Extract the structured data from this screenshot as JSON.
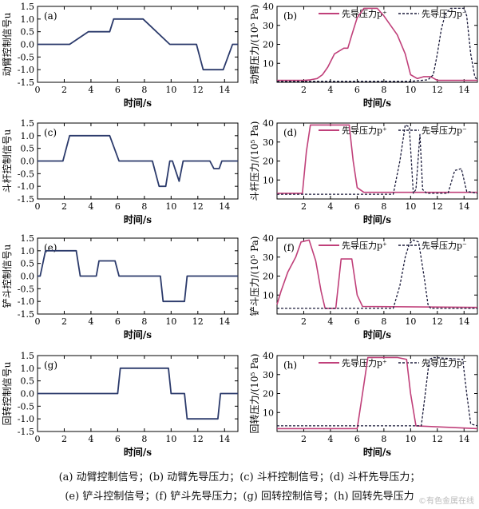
{
  "figure": {
    "caption_line1": "(a) 动臂控制信号；(b) 动臂先导压力；(c) 斗杆控制信号；(d) 斗杆先导压力；",
    "caption_line2": "(e) 铲斗控制信号；(f) 铲斗先导压力；(g) 回转控制信号；(h) 回转先导压力",
    "watermark": "©有色金属在线"
  },
  "colors": {
    "signal": "#2b3a6b",
    "p_plus": "#c0407a",
    "p_minus": "#1a1a3a",
    "axis": "#000000"
  },
  "chart_data": [
    {
      "id": "a",
      "type": "line",
      "panel_label": "(a)",
      "xlabel": "时间/s",
      "ylabel": "动臂控制信号u",
      "xlim": [
        0,
        15
      ],
      "ylim": [
        -1.5,
        1.5
      ],
      "xticks": [
        0,
        2,
        4,
        6,
        8,
        10,
        12,
        14
      ],
      "yticks": [
        -1.5,
        -1.0,
        -0.5,
        0,
        0.5,
        1.0,
        1.5
      ],
      "series": [
        {
          "style": "signal",
          "x": [
            0,
            2.4,
            3.8,
            5.4,
            5.7,
            7.9,
            9.9,
            11.9,
            12.4,
            13.9,
            14.6,
            15
          ],
          "y": [
            0,
            0,
            0.5,
            0.5,
            1.0,
            1.0,
            0,
            0,
            -1.0,
            -1.0,
            0,
            0
          ]
        }
      ]
    },
    {
      "id": "b",
      "type": "line",
      "panel_label": "(b)",
      "xlabel": "时间/s",
      "ylabel": "动臂压力/(10⁵ Pa)",
      "xlim": [
        0,
        15
      ],
      "ylim": [
        0,
        40
      ],
      "xticks": [
        2,
        4,
        6,
        8,
        10,
        12,
        14
      ],
      "yticks": [
        10,
        20,
        30,
        40
      ],
      "legend": [
        "先导压力p⁺",
        "先导压力p⁻"
      ],
      "series": [
        {
          "style": "p_plus",
          "x": [
            0,
            2,
            2.5,
            3,
            3.4,
            3.8,
            4.3,
            5.0,
            5.3,
            5.6,
            6.0,
            6.5,
            7.5,
            8.0,
            9.0,
            9.6,
            10.0,
            10.5,
            11.0,
            11.5,
            12.0,
            15
          ],
          "y": [
            1,
            1,
            1.3,
            2,
            4,
            8,
            15,
            18,
            18,
            25,
            34,
            39,
            39,
            35,
            25,
            15,
            4,
            2,
            3,
            3,
            1,
            1
          ]
        },
        {
          "style": "p_minus",
          "x": [
            0,
            10,
            11.3,
            11.7,
            12.0,
            12.3,
            12.6,
            13.0,
            14.0,
            14.2,
            14.5,
            14.8,
            15
          ],
          "y": [
            0.5,
            0.5,
            1.3,
            4,
            15,
            28,
            36,
            39,
            39,
            35,
            15,
            3,
            1
          ]
        }
      ]
    },
    {
      "id": "c",
      "type": "line",
      "panel_label": "(c)",
      "xlabel": "时间/s",
      "ylabel": "斗杆控制信号u",
      "xlim": [
        0,
        15
      ],
      "ylim": [
        -1.5,
        1.5
      ],
      "xticks": [
        0,
        2,
        4,
        6,
        8,
        10,
        12,
        14
      ],
      "yticks": [
        -1.5,
        -1.0,
        -0.5,
        0,
        0.5,
        1.0,
        1.5
      ],
      "series": [
        {
          "style": "signal",
          "x": [
            0,
            1.9,
            2.4,
            5.4,
            6.1,
            8.6,
            9.1,
            9.6,
            9.9,
            10.1,
            10.35,
            10.6,
            10.9,
            11.4,
            12.9,
            13.2,
            13.6,
            13.8,
            15
          ],
          "y": [
            0,
            0,
            1.0,
            1.0,
            0,
            0,
            -1.0,
            -1.0,
            0,
            0,
            -0.4,
            -0.8,
            0,
            0,
            0,
            -0.3,
            -0.3,
            0,
            0
          ]
        }
      ]
    },
    {
      "id": "d",
      "type": "line",
      "panel_label": "(d)",
      "xlabel": "时间/s",
      "ylabel": "斗杆压力/(10⁵ Pa)",
      "xlim": [
        0,
        15
      ],
      "ylim": [
        0,
        40
      ],
      "xticks": [
        2,
        4,
        6,
        8,
        10,
        12,
        14
      ],
      "yticks": [
        10,
        20,
        30,
        40
      ],
      "legend": [
        "先导压力p⁺",
        "先导压力p⁻"
      ],
      "series": [
        {
          "style": "p_plus",
          "x": [
            0,
            1.9,
            2.2,
            2.5,
            5.4,
            5.7,
            6.0,
            6.5,
            15
          ],
          "y": [
            3,
            3,
            25,
            39,
            39,
            20,
            6,
            3.5,
            3.5
          ]
        },
        {
          "style": "p_minus",
          "x": [
            0,
            8.7,
            9.2,
            9.6,
            9.9,
            10.2,
            10.4,
            10.7,
            10.9,
            11.2,
            12.8,
            13.3,
            13.8,
            14.2,
            15
          ],
          "y": [
            2.5,
            2.5,
            20,
            39,
            38,
            3,
            5,
            34,
            5,
            3,
            3,
            15,
            16,
            4,
            3
          ]
        }
      ]
    },
    {
      "id": "e",
      "type": "line",
      "panel_label": "(e)",
      "xlabel": "时间/s",
      "ylabel": "铲斗控制信号u",
      "xlim": [
        0,
        15
      ],
      "ylim": [
        -1.5,
        1.5
      ],
      "xticks": [
        0,
        2,
        4,
        6,
        8,
        10,
        12,
        14
      ],
      "yticks": [
        -1.5,
        -1.0,
        -0.5,
        0,
        0.5,
        1.0,
        1.5
      ],
      "series": [
        {
          "style": "signal",
          "x": [
            0,
            0.2,
            0.6,
            2.9,
            3.2,
            4.4,
            4.6,
            5.8,
            6.1,
            9.2,
            9.4,
            11.0,
            11.2,
            15
          ],
          "y": [
            0,
            0,
            1.0,
            1.0,
            0,
            0,
            0.6,
            0.6,
            0,
            0,
            -1.0,
            -1.0,
            0,
            0
          ]
        }
      ]
    },
    {
      "id": "f",
      "type": "line",
      "panel_label": "(f)",
      "xlabel": "时间/s",
      "ylabel": "铲斗压力/(10⁵ Pa)",
      "xlim": [
        0,
        15
      ],
      "ylim": [
        0,
        40
      ],
      "xticks": [
        2,
        4,
        6,
        8,
        10,
        12,
        14
      ],
      "yticks": [
        10,
        20,
        30,
        40
      ],
      "legend": [
        "先导压力p⁺",
        "先导压力p⁻"
      ],
      "series": [
        {
          "style": "p_plus",
          "x": [
            0,
            0.3,
            0.8,
            1.4,
            1.8,
            2.4,
            2.9,
            3.3,
            3.6,
            4.4,
            4.8,
            5.6,
            6.0,
            6.4,
            15
          ],
          "y": [
            5,
            12,
            22,
            30,
            38,
            39,
            28,
            12,
            3,
            3,
            29,
            29,
            10,
            4,
            3.5
          ]
        },
        {
          "style": "p_minus",
          "x": [
            0,
            8.7,
            9.2,
            9.6,
            9.9,
            10.2,
            10.6,
            11.0,
            11.3,
            11.5,
            15
          ],
          "y": [
            3,
            3,
            15,
            30,
            37,
            39,
            38,
            20,
            5,
            3,
            3
          ]
        }
      ]
    },
    {
      "id": "g",
      "type": "line",
      "panel_label": "(g)",
      "xlabel": "时间/s",
      "ylabel": "回转控制信号u",
      "xlim": [
        0,
        15
      ],
      "ylim": [
        -1.5,
        1.5
      ],
      "xticks": [
        0,
        2,
        4,
        6,
        8,
        10,
        12,
        14
      ],
      "yticks": [
        -1.5,
        -1.0,
        -0.5,
        0,
        0.5,
        1.0,
        1.5
      ],
      "series": [
        {
          "style": "signal",
          "x": [
            0,
            6.0,
            6.2,
            9.8,
            10.0,
            11.0,
            11.2,
            13.5,
            13.7,
            15
          ],
          "y": [
            0,
            0,
            1.0,
            1.0,
            0,
            0,
            -1.0,
            -1.0,
            0,
            0
          ]
        }
      ]
    },
    {
      "id": "h",
      "type": "line",
      "panel_label": "(h)",
      "xlabel": "时间/s",
      "ylabel": "回转压力/(10⁵ Pa)",
      "xlim": [
        0,
        15
      ],
      "ylim": [
        0,
        40
      ],
      "xticks": [
        2,
        4,
        6,
        8,
        10,
        12,
        14
      ],
      "yticks": [
        10,
        20,
        30,
        40
      ],
      "legend": [
        "先导压力p⁺",
        "先导压力p⁻"
      ],
      "series": [
        {
          "style": "p_plus",
          "x": [
            0,
            6.0,
            6.4,
            6.8,
            9.0,
            9.7,
            10.0,
            10.4,
            15
          ],
          "y": [
            1.5,
            1.5,
            20,
            39,
            39,
            38,
            20,
            3,
            1.5
          ]
        },
        {
          "style": "p_minus",
          "x": [
            0,
            10.8,
            11.1,
            11.4,
            11.7,
            13.9,
            14.2,
            14.5,
            15
          ],
          "y": [
            3,
            3,
            20,
            38,
            39,
            38,
            20,
            4,
            3
          ]
        }
      ]
    }
  ]
}
